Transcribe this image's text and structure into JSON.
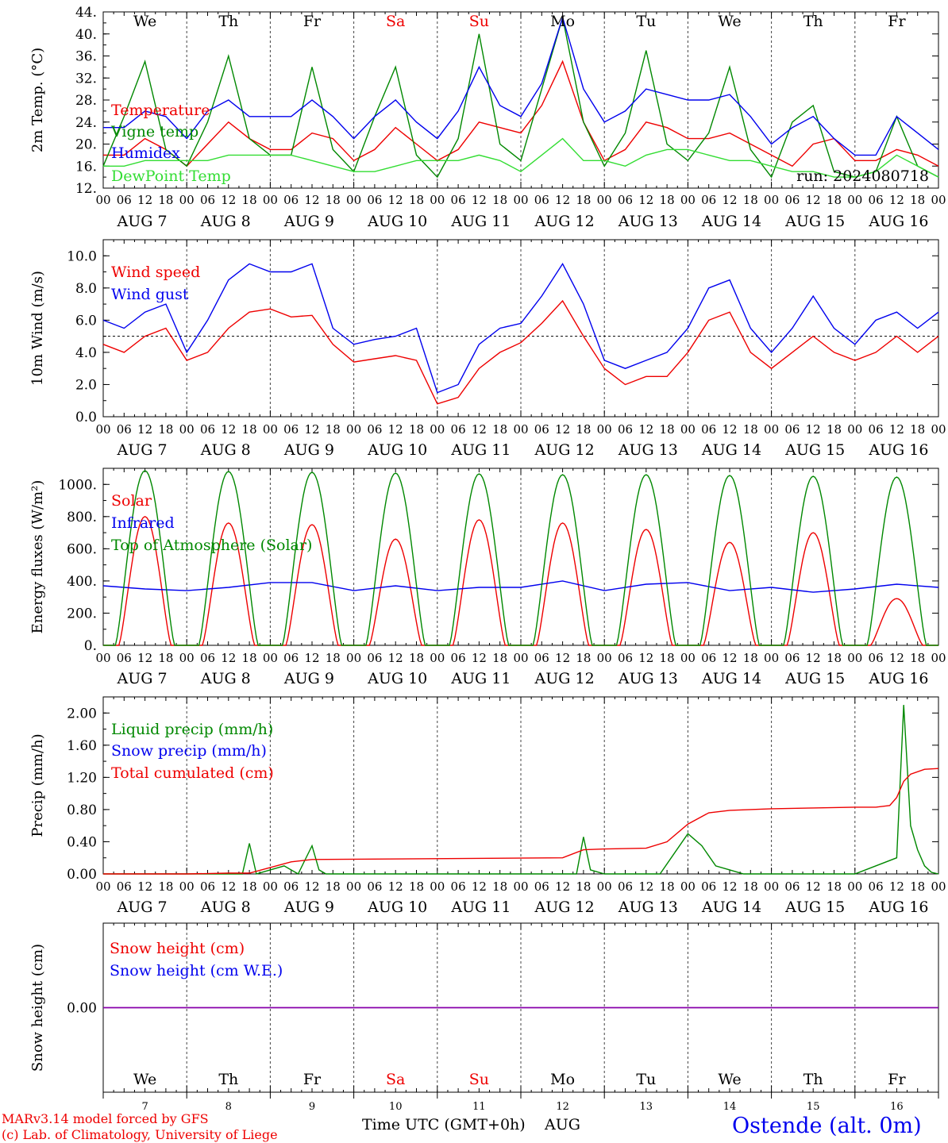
{
  "colors": {
    "red": "#ee0000",
    "blue": "#0000ee",
    "green": "#008800",
    "lightgreen": "#33dd33",
    "purple": "#8800aa"
  },
  "day_names": [
    "We",
    "Th",
    "Fr",
    "Sa",
    "Su",
    "Mo",
    "Tu",
    "We",
    "Th",
    "Fr"
  ],
  "day_name_colors": [
    "black",
    "black",
    "black",
    "red",
    "red",
    "black",
    "black",
    "black",
    "black",
    "black"
  ],
  "date_labels": [
    "AUG  7",
    "AUG  8",
    "AUG  9",
    "AUG 10",
    "AUG 11",
    "AUG 12",
    "AUG 13",
    "AUG 14",
    "AUG 15",
    "AUG 16"
  ],
  "hour_labels": [
    "00",
    "06",
    "12",
    "18"
  ],
  "final_hour_label": "00",
  "day_numbers": [
    "7",
    "8",
    "9",
    "10",
    "11",
    "12",
    "13",
    "14",
    "15",
    "16"
  ],
  "footer": {
    "model": "MARv3.14 model forced by GFS",
    "copyright": "(c) Lab. of Climatology, University of Liege",
    "time_axis": "Time UTC (GMT+0h)",
    "month": "AUG",
    "station": "Ostende (alt. 0m)"
  },
  "chart_data": [
    {
      "type": "line",
      "ylabel": "2m Temp. (°C)",
      "ylim": [
        12,
        44
      ],
      "yticks": [
        "12.",
        "16.",
        "20.",
        "24.",
        "28.",
        "32.",
        "36.",
        "40.",
        "44."
      ],
      "run_label": "run: 2024080718",
      "x_hours": [
        0,
        6,
        12,
        18,
        24,
        30,
        36,
        42,
        48,
        54,
        60,
        66,
        72,
        78,
        84,
        90,
        96,
        102,
        108,
        114,
        120,
        126,
        132,
        138,
        144,
        150,
        156,
        162,
        168,
        174,
        180,
        186,
        192,
        198,
        204,
        210,
        216,
        222,
        228,
        234,
        240
      ],
      "series": [
        {
          "name": "Temperature",
          "color": "red",
          "values": [
            18,
            18,
            21,
            19,
            16,
            20,
            24,
            21,
            19,
            19,
            22,
            21,
            17,
            19,
            23,
            20,
            17,
            19,
            24,
            23,
            22,
            27,
            35,
            24,
            17,
            19,
            24,
            23,
            21,
            21,
            22,
            20,
            18,
            16,
            20,
            21,
            17,
            17,
            19,
            18,
            16
          ]
        },
        {
          "name": "Vigne temp",
          "color": "green",
          "values": [
            16,
            25,
            35,
            19,
            16,
            24,
            36,
            21,
            18,
            18,
            34,
            19,
            15,
            25,
            34,
            18,
            14,
            21,
            40,
            20,
            17,
            30,
            43,
            24,
            16,
            22,
            37,
            20,
            17,
            22,
            34,
            19,
            14,
            24,
            27,
            15,
            14,
            15,
            25,
            16,
            14
          ]
        },
        {
          "name": "Humidex",
          "color": "blue",
          "values": [
            23,
            23,
            26,
            25,
            21,
            26,
            28,
            25,
            25,
            25,
            28,
            25,
            21,
            25,
            28,
            24,
            21,
            26,
            34,
            27,
            25,
            31,
            43,
            30,
            24,
            26,
            30,
            29,
            28,
            28,
            29,
            25,
            20,
            23,
            25,
            21,
            18,
            18,
            25,
            22,
            19
          ]
        },
        {
          "name": "DewPoint Temp",
          "color": "lightgreen",
          "values": [
            16,
            16,
            17,
            17,
            17,
            17,
            18,
            18,
            18,
            18,
            17,
            16,
            15,
            15,
            16,
            17,
            17,
            17,
            18,
            17,
            15,
            18,
            21,
            17,
            17,
            16,
            18,
            19,
            19,
            18,
            17,
            17,
            16,
            15,
            15,
            14,
            14,
            15,
            18,
            16,
            14
          ]
        }
      ]
    },
    {
      "type": "line",
      "ylabel": "10m Wind (m/s)",
      "ylim": [
        0,
        11
      ],
      "yticks": [
        "0.0",
        "2.0",
        "4.0",
        "6.0",
        "8.0",
        "10.0"
      ],
      "reference_line": 5,
      "x_hours": [
        0,
        6,
        12,
        18,
        24,
        30,
        36,
        42,
        48,
        54,
        60,
        66,
        72,
        78,
        84,
        90,
        96,
        102,
        108,
        114,
        120,
        126,
        132,
        138,
        144,
        150,
        156,
        162,
        168,
        174,
        180,
        186,
        192,
        198,
        204,
        210,
        216,
        222,
        228,
        234,
        240
      ],
      "series": [
        {
          "name": "Wind speed",
          "color": "red",
          "values": [
            4.5,
            4.0,
            5.0,
            5.5,
            3.5,
            4.0,
            5.5,
            6.5,
            6.7,
            6.2,
            6.3,
            4.5,
            3.4,
            3.6,
            3.8,
            3.5,
            0.8,
            1.2,
            3.0,
            4.0,
            4.6,
            5.8,
            7.2,
            5.0,
            3.0,
            2.0,
            2.5,
            2.5,
            4.0,
            6.0,
            6.5,
            4.0,
            3.0,
            4.0,
            5.0,
            4.0,
            3.5,
            4.0,
            5.0,
            4.0,
            5.0
          ]
        },
        {
          "name": "Wind gust",
          "color": "blue",
          "values": [
            6.0,
            5.5,
            6.5,
            7.0,
            4.0,
            6.0,
            8.5,
            9.5,
            9.0,
            9.0,
            9.5,
            5.5,
            4.5,
            4.8,
            5.0,
            5.5,
            1.5,
            2.0,
            4.5,
            5.5,
            5.8,
            7.5,
            9.5,
            7.0,
            3.5,
            3.0,
            3.5,
            4.0,
            5.5,
            8.0,
            8.5,
            5.5,
            4.0,
            5.5,
            7.5,
            5.5,
            4.5,
            6.0,
            6.5,
            5.5,
            6.5
          ]
        }
      ]
    },
    {
      "type": "line",
      "ylabel": "Energy fluxes (W/m²)",
      "ylim": [
        0,
        1100
      ],
      "yticks": [
        "0.",
        "200.",
        "400.",
        "600.",
        "800.",
        "1000."
      ],
      "series": [
        {
          "name": "Solar",
          "color": "red",
          "day_peaks": [
            800,
            760,
            750,
            660,
            780,
            760,
            720,
            640,
            700,
            290
          ]
        },
        {
          "name": "Infrared",
          "color": "blue",
          "x_hours": [
            0,
            12,
            24,
            36,
            48,
            60,
            72,
            84,
            96,
            108,
            120,
            132,
            144,
            156,
            168,
            180,
            192,
            204,
            216,
            228,
            240
          ],
          "values": [
            370,
            350,
            340,
            360,
            390,
            390,
            340,
            370,
            340,
            360,
            360,
            400,
            340,
            380,
            390,
            340,
            360,
            330,
            350,
            380,
            360
          ]
        },
        {
          "name": "Top of Atmosphere (Solar)",
          "color": "green",
          "day_peaks": [
            1085,
            1080,
            1075,
            1070,
            1065,
            1060,
            1060,
            1055,
            1050,
            1045
          ]
        }
      ]
    },
    {
      "type": "line",
      "ylabel": "Precip (mm/h)",
      "ylim": [
        0,
        2.2
      ],
      "yticks": [
        "0.00",
        "0.40",
        "0.80",
        "1.20",
        "1.60",
        "2.00"
      ],
      "series": [
        {
          "name": "Liquid precip (mm/h)",
          "color": "green",
          "x_hours": [
            0,
            24,
            40,
            42,
            44,
            48,
            52,
            56,
            60,
            62,
            64,
            68,
            72,
            120,
            136,
            138,
            140,
            144,
            160,
            168,
            172,
            176,
            180,
            184,
            192,
            216,
            228,
            230,
            232,
            234,
            236,
            238,
            240
          ],
          "values": [
            0,
            0,
            0,
            0.38,
            0,
            0.05,
            0.1,
            0,
            0.35,
            0.05,
            0,
            0,
            0,
            0,
            0,
            0.46,
            0.05,
            0,
            0,
            0.5,
            0.35,
            0.1,
            0.05,
            0,
            0,
            0,
            0.2,
            2.1,
            0.6,
            0.3,
            0.1,
            0.02,
            0
          ]
        },
        {
          "name": "Snow precip (mm/h)",
          "color": "blue",
          "values": []
        },
        {
          "name": "Total cumulated (cm)",
          "color": "red",
          "x_hours": [
            0,
            24,
            36,
            42,
            48,
            54,
            60,
            132,
            138,
            144,
            156,
            162,
            168,
            174,
            180,
            192,
            204,
            216,
            222,
            226,
            228,
            230,
            232,
            236,
            240
          ],
          "values": [
            0,
            0,
            0.01,
            0.01,
            0.08,
            0.15,
            0.18,
            0.2,
            0.3,
            0.31,
            0.32,
            0.4,
            0.62,
            0.76,
            0.79,
            0.81,
            0.82,
            0.83,
            0.83,
            0.85,
            0.95,
            1.15,
            1.24,
            1.3,
            1.31
          ]
        }
      ]
    },
    {
      "type": "line",
      "ylabel": "Snow height (cm)",
      "ylim": [
        -1,
        1
      ],
      "yticks": [
        "0.00"
      ],
      "series": [
        {
          "name": "Snow height (cm)",
          "color": "red",
          "values": [
            0,
            0
          ]
        },
        {
          "name": "Snow height (cm W.E.)",
          "color": "blue",
          "values": [
            0,
            0
          ]
        }
      ]
    }
  ]
}
